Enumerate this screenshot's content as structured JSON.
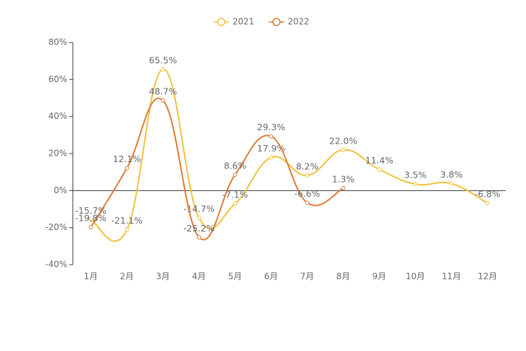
{
  "chart_data": {
    "type": "line",
    "categories": [
      "1月",
      "2月",
      "3月",
      "4月",
      "5月",
      "6月",
      "7月",
      "8月",
      "9月",
      "10月",
      "11月",
      "12月"
    ],
    "series": [
      {
        "name": "2021",
        "color": "#f2c138",
        "values": [
          -15.7,
          -21.1,
          65.5,
          -14.7,
          -7.1,
          17.9,
          8.2,
          22.0,
          11.4,
          3.5,
          3.8,
          -6.8
        ],
        "value_labels": [
          "-15.7%",
          "-21.1%",
          "65.5%",
          "-14.7%",
          "-7.1%",
          "17.9%",
          "8.2%",
          "22.0%",
          "11.4%",
          "3.5%",
          "3.8%",
          "-6.8%"
        ]
      },
      {
        "name": "2022",
        "color": "#dd7a33",
        "values": [
          -19.8,
          12.1,
          48.7,
          -25.2,
          8.6,
          29.3,
          -6.6,
          1.3,
          null,
          null,
          null,
          null
        ],
        "value_labels": [
          "-19.8%",
          "12.1%",
          "48.7%",
          "-25.2%",
          "8.6%",
          "29.3%",
          "-6.6%",
          "1.3%",
          null,
          null,
          null,
          null
        ]
      }
    ],
    "ylim": [
      -40,
      80
    ],
    "yticks": [
      {
        "value": -40,
        "label": "-40%"
      },
      {
        "value": -20,
        "label": "-20%"
      },
      {
        "value": 0,
        "label": "0%"
      },
      {
        "value": 20,
        "label": "20%"
      },
      {
        "value": 40,
        "label": "40%"
      },
      {
        "value": 60,
        "label": "60%"
      },
      {
        "value": 80,
        "label": "80%"
      }
    ],
    "legend": "top"
  }
}
